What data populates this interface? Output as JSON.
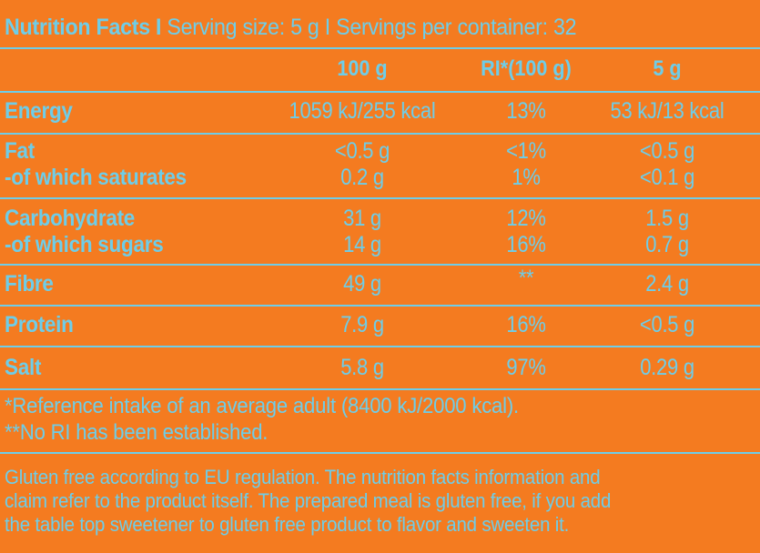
{
  "header": {
    "title": "Nutrition Facts I",
    "serving": "Serving size: 5 g I Servings per container: 32"
  },
  "columns": [
    "100 g",
    "RI*(100 g)",
    "5 g"
  ],
  "rows": [
    {
      "label": "Energy",
      "per100": "1059 kJ/255 kcal",
      "ri": "13%",
      "serving": "53 kJ/13 kcal"
    },
    {
      "label": "Fat",
      "per100": "<0.5 g",
      "ri": "<1%",
      "serving": "<0.5 g"
    },
    {
      "label": "-of which saturates",
      "per100": "0.2 g",
      "ri": "1%",
      "serving": "<0.1 g"
    },
    {
      "label": "Carbohydrate",
      "per100": "31 g",
      "ri": "12%",
      "serving": "1.5 g"
    },
    {
      "label": "-of which sugars",
      "per100": "14 g",
      "ri": "16%",
      "serving": "0.7 g"
    },
    {
      "label": "Fibre",
      "per100": "49 g",
      "ri": "**",
      "serving": "2.4 g"
    },
    {
      "label": "Protein",
      "per100": "7.9 g",
      "ri": "16%",
      "serving": "<0.5 g"
    },
    {
      "label": "Salt",
      "per100": "5.8 g",
      "ri": "97%",
      "serving": "0.29 g"
    }
  ],
  "footnotes": [
    "*Reference intake of an average adult (8400 kJ/2000 kcal).",
    "**No RI has been established."
  ],
  "notes": [
    "Gluten free according to EU regulation. The nutrition facts information and",
    "claim refer to the product itself. The prepared meal is gluten free, if you add",
    "the table top sweetener to gluten free product to flavor and sweeten it."
  ]
}
